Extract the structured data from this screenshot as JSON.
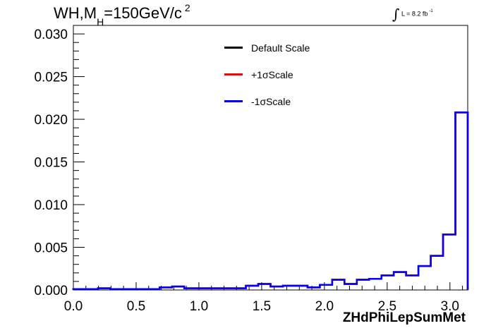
{
  "title": {
    "main": "WH,M",
    "subscript": "H",
    "rest": "=150GeV/c",
    "superscript": "2"
  },
  "luminosity": {
    "symbol": "∫",
    "text": "L = 8.2 fb",
    "superscript": "-1"
  },
  "chart_data": {
    "type": "line",
    "subtype": "step-histogram",
    "xlabel": "ZHdPhiLepSumMet",
    "ylabel": "",
    "xlim": [
      0.0,
      3.1416
    ],
    "ylim": [
      0.0,
      0.031
    ],
    "x_ticks": [
      "0.0",
      "0.5",
      "1.0",
      "1.5",
      "2.0",
      "2.5",
      "3.0"
    ],
    "y_ticks": [
      "0.000",
      "0.005",
      "0.010",
      "0.015",
      "0.020",
      "0.025",
      "0.030"
    ],
    "legend_position": "top-center",
    "bin_edges": [
      0.0,
      0.0982,
      0.1963,
      0.2945,
      0.3927,
      0.4909,
      0.589,
      0.6872,
      0.7854,
      0.8836,
      0.9817,
      1.0799,
      1.1781,
      1.2763,
      1.3744,
      1.4726,
      1.5708,
      1.669,
      1.7671,
      1.8653,
      1.9635,
      2.0617,
      2.1598,
      2.258,
      2.3562,
      2.4544,
      2.5525,
      2.6507,
      2.7489,
      2.8471,
      2.9452,
      3.0434,
      3.1416
    ],
    "series": [
      {
        "name": "Default Scale",
        "color": "#000000",
        "values": [
          0.0001,
          0.0001,
          0.0002,
          0.0001,
          0.0001,
          0.0001,
          0.0001,
          0.0003,
          0.0004,
          0.0002,
          0.0002,
          0.0002,
          0.0002,
          0.0002,
          0.0005,
          0.0007,
          0.0004,
          0.0005,
          0.0005,
          0.0003,
          0.0006,
          0.0012,
          0.0007,
          0.0012,
          0.0013,
          0.0017,
          0.0021,
          0.0017,
          0.0028,
          0.004,
          0.0065,
          0.0208
        ]
      },
      {
        "name": "+1σScale",
        "color": "#ff0000",
        "values": [
          0.0001,
          0.0001,
          0.0002,
          0.0001,
          0.0001,
          0.0001,
          0.0001,
          0.0003,
          0.0004,
          0.0002,
          0.0002,
          0.0002,
          0.0002,
          0.0002,
          0.0005,
          0.0007,
          0.0004,
          0.0005,
          0.0005,
          0.0003,
          0.0006,
          0.0012,
          0.0007,
          0.0012,
          0.0013,
          0.0017,
          0.0021,
          0.0017,
          0.0028,
          0.004,
          0.0065,
          0.0208
        ]
      },
      {
        "name": "-1σScale",
        "color": "#0000ff",
        "values": [
          0.0001,
          0.0001,
          0.0002,
          0.0001,
          0.0001,
          0.0001,
          0.0001,
          0.0003,
          0.0004,
          0.0002,
          0.0002,
          0.0002,
          0.0002,
          0.0002,
          0.0005,
          0.0007,
          0.0004,
          0.0005,
          0.0005,
          0.0003,
          0.0006,
          0.0012,
          0.0007,
          0.0012,
          0.0013,
          0.0017,
          0.0021,
          0.0017,
          0.0028,
          0.004,
          0.0065,
          0.0208
        ]
      }
    ]
  }
}
